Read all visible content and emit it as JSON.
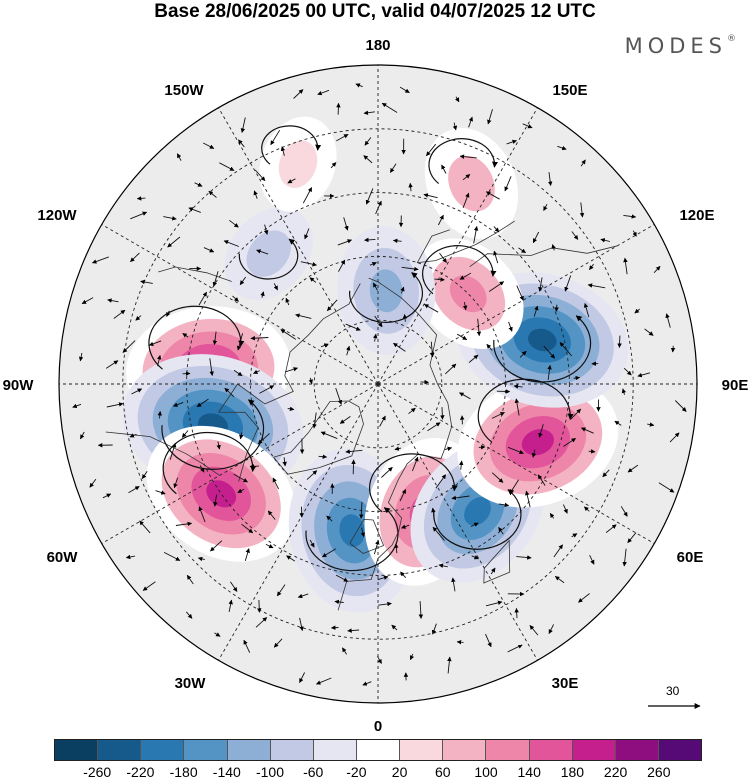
{
  "title": "Base 28/06/2025 00 UTC, valid 04/07/2025 12 UTC",
  "brand": "MODES",
  "brand_mark": "®",
  "map_labels": {
    "top": "180",
    "bottom": "0",
    "left": "90W",
    "right": "90E",
    "upper_left_150": "150W",
    "upper_right_150": "150E",
    "upper_left_120": "120W",
    "upper_right_120": "120E",
    "lower_left_60": "60W",
    "lower_right_60": "60E",
    "lower_left_30": "30W",
    "lower_right_30": "30E"
  },
  "reference_vector": {
    "label": "30"
  },
  "colorbar": {
    "colors": [
      "#0b3f61",
      "#165a8c",
      "#2a78b2",
      "#5394c5",
      "#8dafd6",
      "#c2c9e4",
      "#e6e6f2",
      "#ffffff",
      "#f9d9de",
      "#f4b3c3",
      "#ee86a9",
      "#e2559a",
      "#c41f8d",
      "#8e0e80",
      "#560a76"
    ],
    "ticks": [
      "-260",
      "-220",
      "-180",
      "-140",
      "-100",
      "-60",
      "-20",
      "20",
      "60",
      "100",
      "140",
      "180",
      "220",
      "260"
    ]
  },
  "anomaly_centers": [
    {
      "lon": -95,
      "lat": 50,
      "value": 200,
      "name": "pos-west-canada"
    },
    {
      "lon": -76,
      "lat": 50,
      "value": -240,
      "name": "neg-hudson"
    },
    {
      "lon": -55,
      "lat": 45,
      "value": 190,
      "name": "pos-atlantic-west"
    },
    {
      "lon": -10,
      "lat": 55,
      "value": -200,
      "name": "neg-uk"
    },
    {
      "lon": 20,
      "lat": 58,
      "value": 170,
      "name": "pos-scandinavia"
    },
    {
      "lon": 38,
      "lat": 52,
      "value": -180,
      "name": "neg-russia-west"
    },
    {
      "lon": 70,
      "lat": 50,
      "value": 200,
      "name": "pos-siberia-west"
    },
    {
      "lon": 105,
      "lat": 50,
      "value": -220,
      "name": "neg-siberia-east"
    },
    {
      "lon": 135,
      "lat": 60,
      "value": 110,
      "name": "pos-east-siberia"
    },
    {
      "lon": 155,
      "lat": 38,
      "value": 90,
      "name": "pos-pacific-north"
    },
    {
      "lon": 175,
      "lat": 68,
      "value": -120,
      "name": "neg-chukchi"
    },
    {
      "lon": -140,
      "lat": 50,
      "value": -60,
      "name": "neg-gulf-alaska"
    },
    {
      "lon": -160,
      "lat": 35,
      "value": 50,
      "name": "pos-pacific-central"
    }
  ]
}
